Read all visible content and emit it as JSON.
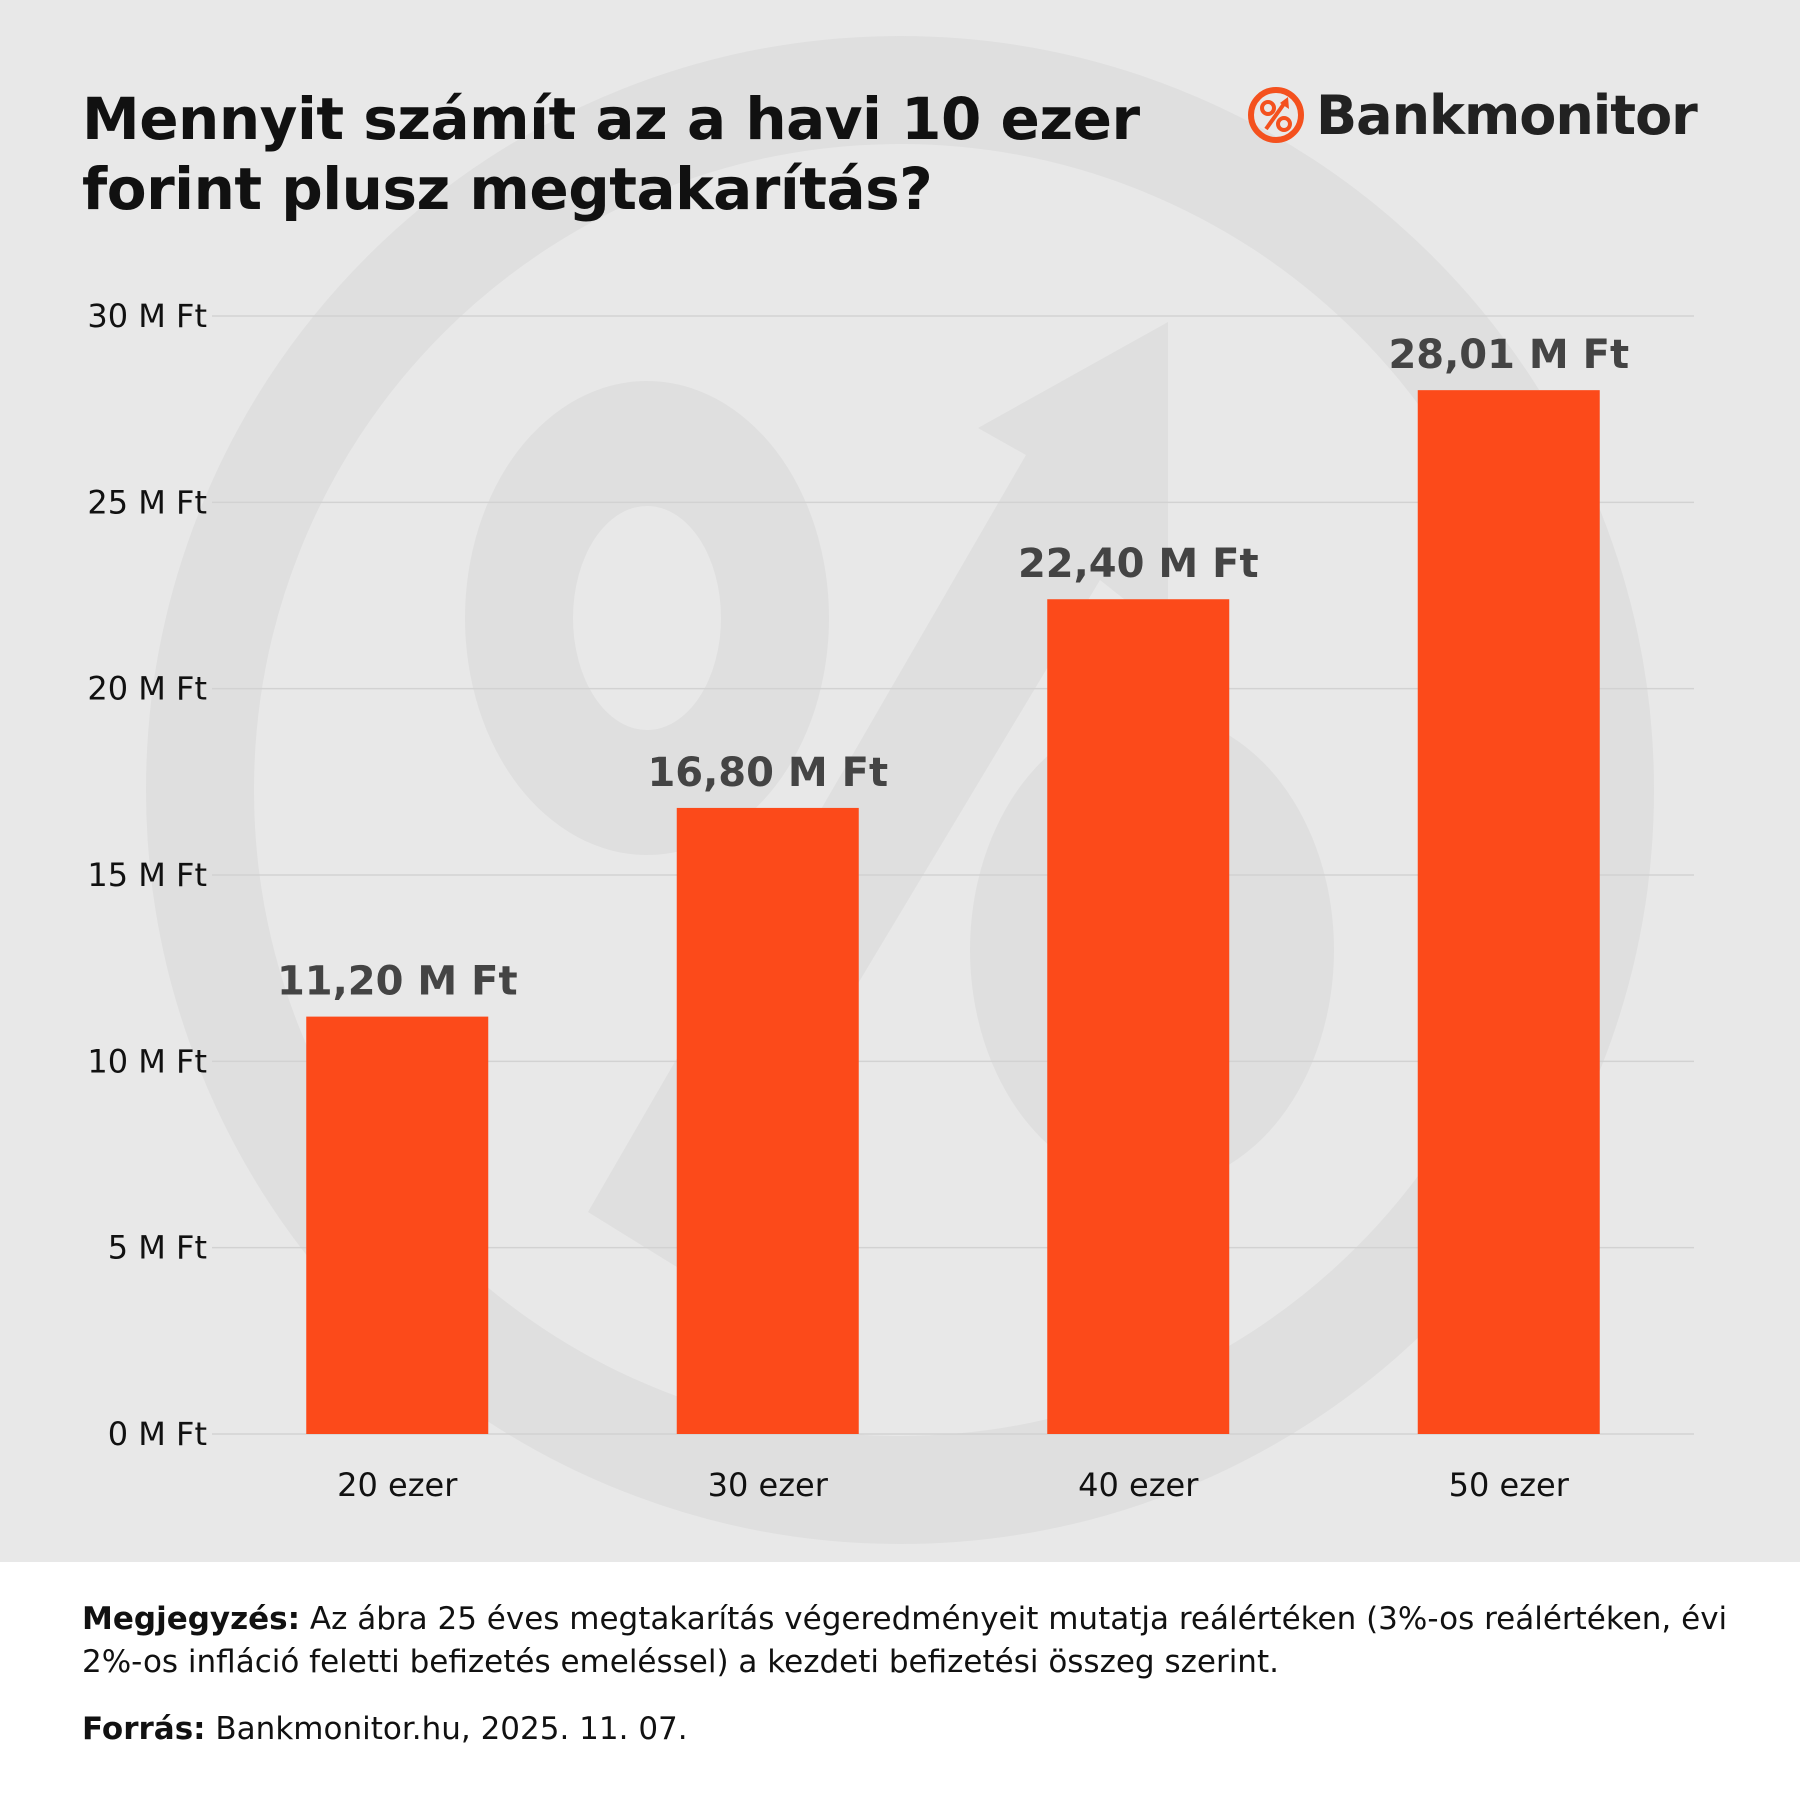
{
  "brand": {
    "name": "Bankmonitor",
    "accent": "#f4511e"
  },
  "chart_data": {
    "type": "bar",
    "title": "Mennyit számít az a havi 10 ezer forint plusz megtakarítás?",
    "categories": [
      "20 ezer",
      "30 ezer",
      "40 ezer",
      "50 ezer"
    ],
    "values": [
      11.2,
      16.8,
      22.4,
      28.01
    ],
    "data_labels": [
      "11,20 M Ft",
      "16,80 M Ft",
      "22,40 M Ft",
      "28,01 M Ft"
    ],
    "ylim": [
      0,
      30
    ],
    "y_ticks": [
      0,
      5,
      10,
      15,
      20,
      25,
      30
    ],
    "y_tick_labels": [
      "0 M Ft",
      "5 M Ft",
      "10 M Ft",
      "15 M Ft",
      "20 M Ft",
      "25 M Ft",
      "30 M Ft"
    ],
    "grid": true,
    "bar_color": "#fc4a1a",
    "gridline_color": "#d2d2d2",
    "label_color": "#444444"
  },
  "footer": {
    "note_label": "Megjegyzés:",
    "note_text": " Az ábra 25 éves megtakarítás végeredményeit mutatja reálértéken (3%-os reálértéken, évi 2%-os infláció feletti befizetés emeléssel) a kezdeti befizetési összeg szerint.",
    "source_label": "Forrás:",
    "source_text": " Bankmonitor.hu, 2025. 11. 07."
  }
}
